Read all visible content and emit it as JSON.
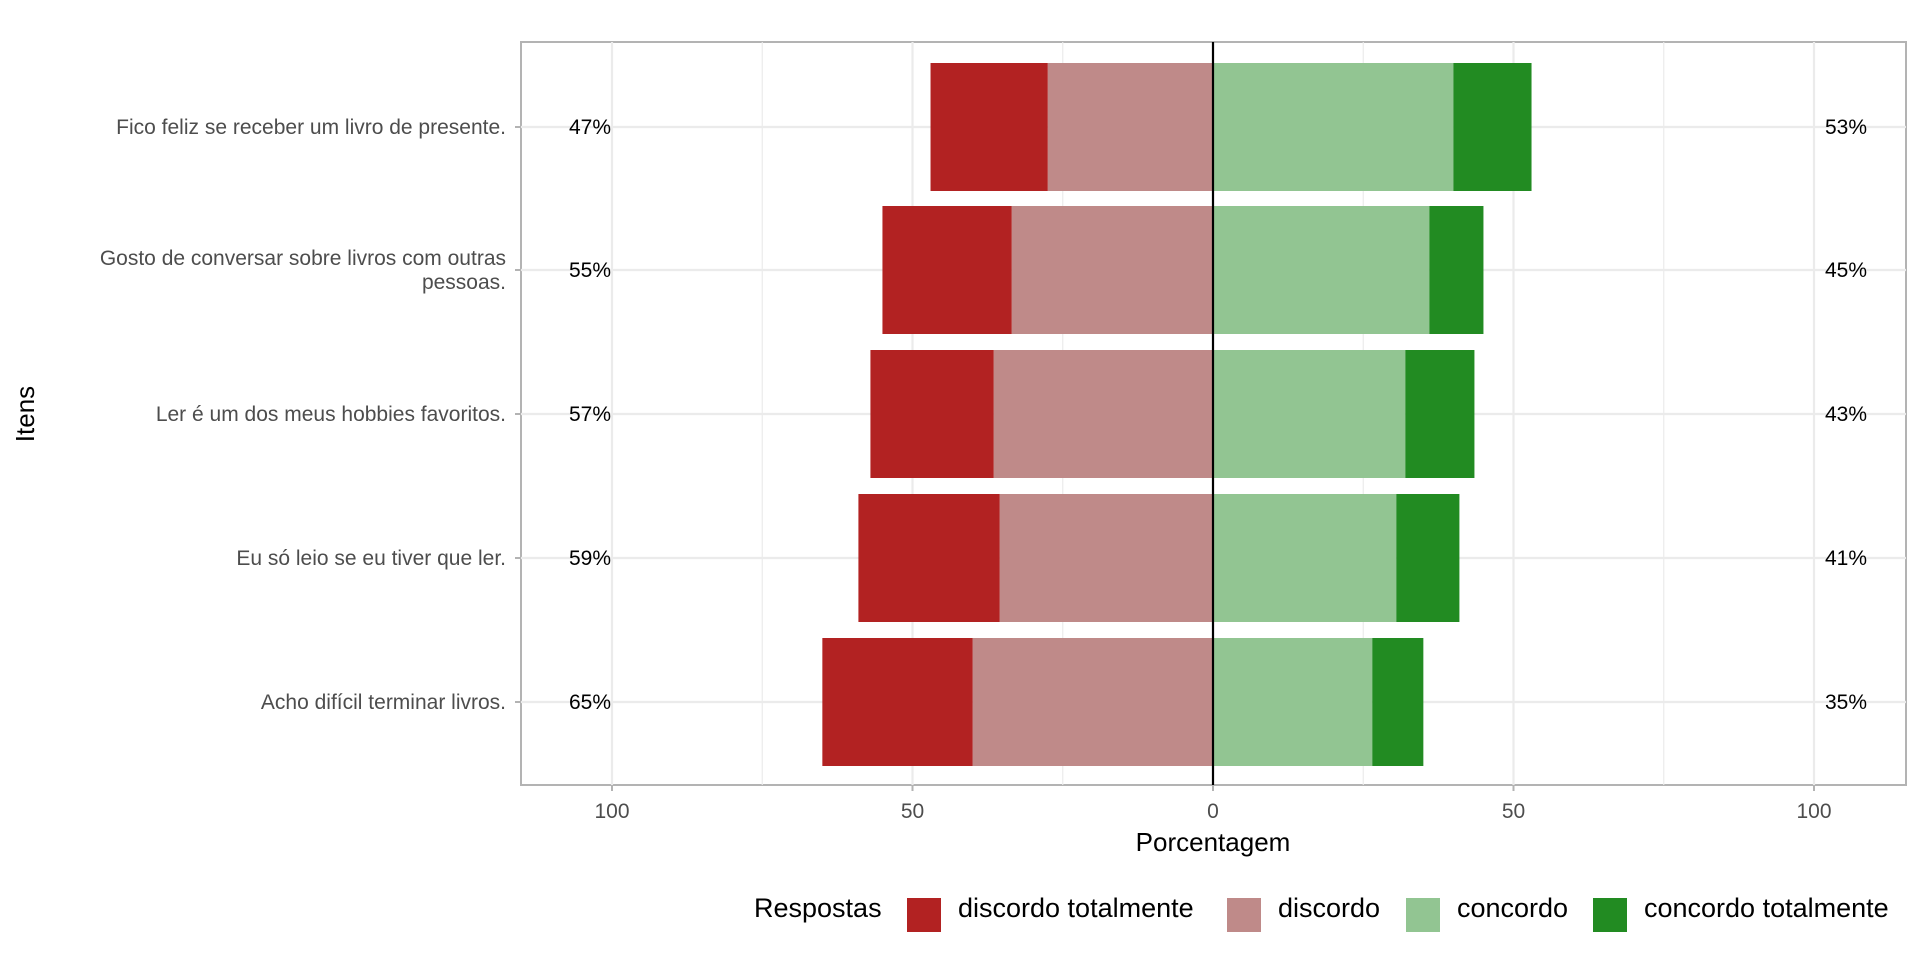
{
  "chart_data": {
    "type": "bar",
    "orientation": "horizontal-diverging",
    "xlabel": "Porcentagem",
    "ylabel": "Itens",
    "xlim": [
      -100,
      100
    ],
    "x_ticks": [
      -100,
      -50,
      0,
      50,
      100
    ],
    "x_tick_labels": [
      "100",
      "50",
      "0",
      "50",
      "100"
    ],
    "grid": true,
    "legend": {
      "title": "Respostas",
      "position": "bottom",
      "entries": [
        "discordo totalmente",
        "discordo",
        "concordo",
        "concordo totalmente"
      ]
    },
    "colors": {
      "discordo totalmente": "#b22222",
      "discordo": "#bf8a89",
      "concordo": "#92c592",
      "concordo totalmente": "#228b22"
    },
    "categories": [
      [
        "Fico feliz se receber um livro de presente."
      ],
      [
        "Gosto de conversar sobre livros com outras",
        "pessoas."
      ],
      [
        "Ler é um dos meus hobbies favoritos."
      ],
      [
        "Eu só leio se eu tiver que ler."
      ],
      [
        "Acho difícil terminar livros."
      ]
    ],
    "series": [
      {
        "name": "discordo totalmente",
        "side": "negative",
        "values": [
          19.5,
          21.5,
          20.5,
          23.5,
          25
        ]
      },
      {
        "name": "discordo",
        "side": "negative",
        "values": [
          27.5,
          33.5,
          36.5,
          35.5,
          40
        ]
      },
      {
        "name": "concordo",
        "side": "positive",
        "values": [
          40,
          36,
          32,
          30.5,
          26.5
        ]
      },
      {
        "name": "concordo totalmente",
        "side": "positive",
        "values": [
          13,
          9,
          11.5,
          10.5,
          8.5
        ]
      }
    ],
    "left_percent_labels": [
      "47%",
      "55%",
      "57%",
      "59%",
      "65%"
    ],
    "right_percent_labels": [
      "53%",
      "45%",
      "43%",
      "41%",
      "35%"
    ]
  }
}
